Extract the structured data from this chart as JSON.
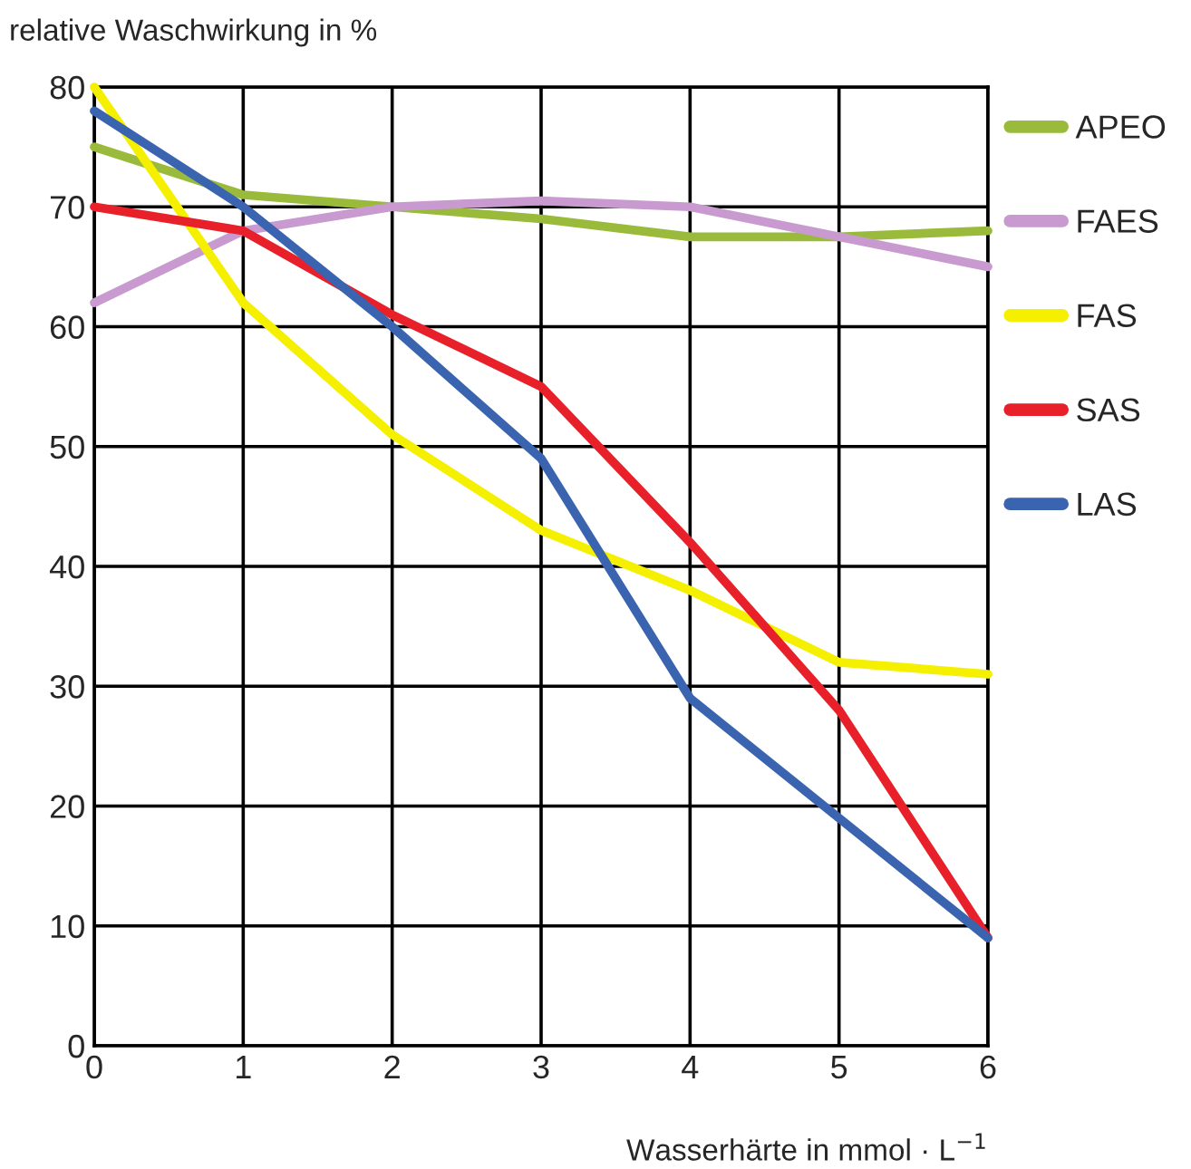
{
  "chart_data": {
    "type": "line",
    "ylabel": "relative Waschwirkung in %",
    "xlabel": "Wasserhärte in mmol · L$^{−1}$",
    "x": [
      0,
      1,
      2,
      3,
      4,
      5,
      6
    ],
    "series": [
      {
        "name": "APEO",
        "color": "#9aba3c",
        "values": [
          75,
          71,
          70,
          69,
          67.5,
          67.5,
          68
        ]
      },
      {
        "name": "FAES",
        "color": "#c89ad0",
        "values": [
          62,
          68,
          70,
          70.5,
          70,
          67.5,
          65
        ]
      },
      {
        "name": "FAS",
        "color": "#f5ef00",
        "values": [
          80,
          62,
          51,
          43,
          38,
          32,
          31
        ]
      },
      {
        "name": "SAS",
        "color": "#e8202a",
        "values": [
          70,
          68,
          61,
          55,
          42,
          28,
          9
        ]
      },
      {
        "name": "LAS",
        "color": "#3a64b0",
        "values": [
          78,
          70,
          60,
          49,
          29,
          19,
          9
        ]
      }
    ],
    "xlim": [
      0,
      6
    ],
    "xticks": [
      0,
      1,
      2,
      3,
      4,
      5,
      6
    ],
    "ylim": [
      0,
      80
    ],
    "yticks": [
      0,
      10,
      20,
      30,
      40,
      50,
      60,
      70,
      80
    ],
    "grid": true,
    "legend": "right",
    "marker": "none",
    "line_style": "solid"
  }
}
